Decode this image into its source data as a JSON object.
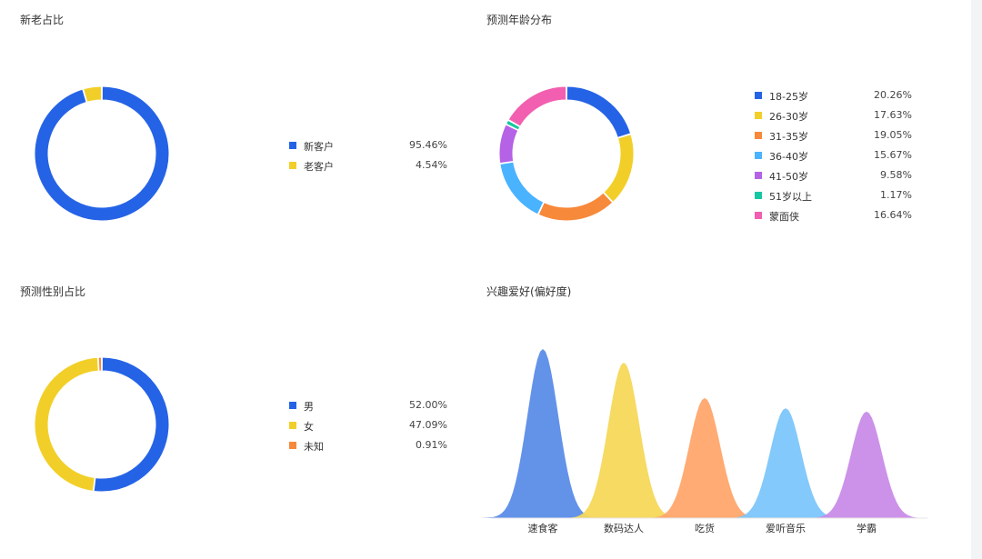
{
  "colors": {
    "blue": "#2563e6",
    "yellow": "#f2cf28",
    "orange": "#f7893a",
    "lightblue": "#4ab3ff",
    "purple": "#b562e6",
    "teal": "#17c7a3",
    "pink": "#f25fb0"
  },
  "chart_data": [
    {
      "type": "pie",
      "donut": true,
      "title": "新老占比",
      "legend": "right",
      "slices": [
        {
          "label": "新客户",
          "value": 95.46,
          "display": "95.46%",
          "color": "#2563e6"
        },
        {
          "label": "老客户",
          "value": 4.54,
          "display": "4.54%",
          "color": "#f2cf28"
        }
      ]
    },
    {
      "type": "pie",
      "donut": true,
      "title": "预测年龄分布",
      "legend": "right",
      "slices": [
        {
          "label": "18-25岁",
          "value": 20.26,
          "display": "20.26%",
          "color": "#2563e6"
        },
        {
          "label": "26-30岁",
          "value": 17.63,
          "display": "17.63%",
          "color": "#f2cf28"
        },
        {
          "label": "31-35岁",
          "value": 19.05,
          "display": "19.05%",
          "color": "#f7893a"
        },
        {
          "label": "36-40岁",
          "value": 15.67,
          "display": "15.67%",
          "color": "#4ab3ff"
        },
        {
          "label": "41-50岁",
          "value": 9.58,
          "display": "9.58%",
          "color": "#b562e6"
        },
        {
          "label": "51岁以上",
          "value": 1.17,
          "display": "1.17%",
          "color": "#17c7a3"
        },
        {
          "label": "蒙面侠",
          "value": 16.64,
          "display": "16.64%",
          "color": "#f25fb0"
        }
      ]
    },
    {
      "type": "pie",
      "donut": true,
      "title": "预测性别占比",
      "legend": "right",
      "slices": [
        {
          "label": "男",
          "value": 52.0,
          "display": "52.00%",
          "color": "#2563e6"
        },
        {
          "label": "女",
          "value": 47.09,
          "display": "47.09%",
          "color": "#f2cf28"
        },
        {
          "label": "未知",
          "value": 0.91,
          "display": "0.91%",
          "color": "#f7893a"
        }
      ]
    },
    {
      "type": "area",
      "title": "兴趣爱好(偏好度)",
      "grid": false,
      "categories": [
        "速食客",
        "数码达人",
        "吃货",
        "爱听音乐",
        "学霸"
      ],
      "values": [
        100,
        92,
        71,
        65,
        63
      ],
      "colors": [
        "#5b8ce8",
        "#f5d85a",
        "#ffa76b",
        "#7cc6fb",
        "#c98be8"
      ]
    }
  ]
}
